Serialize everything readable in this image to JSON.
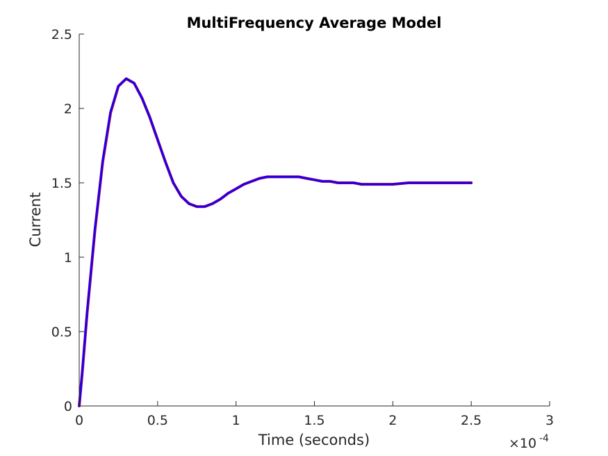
{
  "chart_data": {
    "type": "line",
    "title": "MultiFrequency Average Model",
    "xlabel": "Time (seconds)",
    "ylabel": "Current",
    "x_exponent_base": "×10",
    "x_exponent_power": "-4",
    "xlim": [
      0,
      3
    ],
    "ylim": [
      0,
      2.5
    ],
    "x_ticks": [
      "0",
      "0.5",
      "1",
      "1.5",
      "2",
      "2.5",
      "3"
    ],
    "y_ticks": [
      "0",
      "0.5",
      "1",
      "1.5",
      "2",
      "2.5"
    ],
    "grid": false,
    "legend": "none",
    "series": [
      {
        "color": "#cc0033",
        "x": [
          0,
          0.02,
          0.05,
          0.1,
          0.15,
          0.2,
          0.25,
          0.3,
          0.35,
          0.4,
          0.45,
          0.5,
          0.55,
          0.6,
          0.65,
          0.7,
          0.75,
          0.8,
          0.85,
          0.9,
          0.95,
          1.0,
          1.05,
          1.1,
          1.15,
          1.2,
          1.25,
          1.3,
          1.35,
          1.4,
          1.45,
          1.5,
          1.55,
          1.6,
          1.65,
          1.7,
          1.75,
          1.8,
          1.85,
          1.9,
          2.0,
          2.1,
          2.2,
          2.3,
          2.4,
          2.5
        ],
        "y": [
          0,
          0.23,
          0.62,
          1.18,
          1.64,
          1.97,
          2.15,
          2.2,
          2.17,
          2.07,
          1.94,
          1.79,
          1.64,
          1.5,
          1.41,
          1.36,
          1.34,
          1.34,
          1.36,
          1.39,
          1.43,
          1.46,
          1.49,
          1.51,
          1.53,
          1.54,
          1.54,
          1.54,
          1.54,
          1.54,
          1.53,
          1.52,
          1.51,
          1.51,
          1.5,
          1.5,
          1.5,
          1.49,
          1.49,
          1.49,
          1.49,
          1.5,
          1.5,
          1.5,
          1.5,
          1.5
        ]
      },
      {
        "color": "#1a00f0",
        "x": [
          0,
          0.02,
          0.05,
          0.1,
          0.15,
          0.2,
          0.25,
          0.3,
          0.35,
          0.4,
          0.45,
          0.5,
          0.55,
          0.6,
          0.65,
          0.7,
          0.75,
          0.8,
          0.85,
          0.9,
          0.95,
          1.0,
          1.05,
          1.1,
          1.15,
          1.2,
          1.25,
          1.3,
          1.35,
          1.4,
          1.45,
          1.5,
          1.55,
          1.6,
          1.65,
          1.7,
          1.75,
          1.8,
          1.85,
          1.9,
          2.0,
          2.1,
          2.2,
          2.3,
          2.4,
          2.5
        ],
        "y": [
          0,
          0.24,
          0.63,
          1.19,
          1.65,
          1.98,
          2.15,
          2.2,
          2.17,
          2.07,
          1.94,
          1.79,
          1.64,
          1.5,
          1.41,
          1.36,
          1.34,
          1.34,
          1.36,
          1.39,
          1.43,
          1.46,
          1.49,
          1.51,
          1.53,
          1.54,
          1.54,
          1.54,
          1.54,
          1.54,
          1.53,
          1.52,
          1.51,
          1.51,
          1.5,
          1.5,
          1.5,
          1.49,
          1.49,
          1.49,
          1.49,
          1.5,
          1.5,
          1.5,
          1.5,
          1.5
        ]
      }
    ]
  }
}
